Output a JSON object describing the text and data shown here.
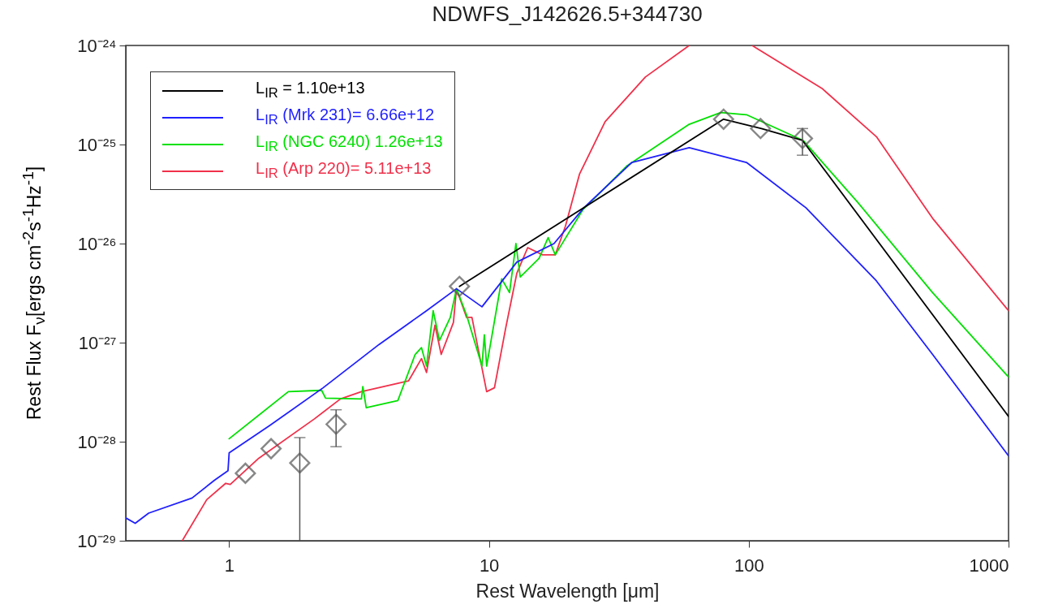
{
  "chart_data": {
    "type": "line",
    "title": "NDWFS_J142626.5+344730",
    "xlabel": "Rest Wavelength [μm]",
    "ylabel": "Rest Flux F$_{ν}$[ergs cm$^{-2}$s$^{-1}$Hz$^{-1}$]",
    "log": "xy",
    "xlim": [
      0.4,
      1000
    ],
    "ylim": [
      1e-29,
      1e-24
    ],
    "xticks": [
      1,
      10,
      100,
      1000
    ],
    "yticks": [
      {
        "value": 1e-29,
        "label": "10⁻²⁹"
      },
      {
        "value": 1e-28,
        "label": "10⁻²⁸"
      },
      {
        "value": 1e-27,
        "label": "10⁻²⁷"
      },
      {
        "value": 1e-26,
        "label": "10⁻²⁶"
      },
      {
        "value": 1e-25,
        "label": "10⁻²⁵"
      },
      {
        "value": 1e-24,
        "label": "10⁻²⁴"
      }
    ],
    "legend": "top left",
    "grid": false,
    "series": [
      {
        "type": "scatter",
        "marker": "diamond",
        "color": "#555555",
        "x": [
          1.155,
          1.45,
          1.87,
          2.58,
          7.7,
          80,
          111,
          161
        ],
        "values": [
          4.8e-29,
          8.5e-29,
          6.1e-29,
          1.5e-28,
          3.7e-27,
          1.8e-25,
          1.45e-25,
          1.15e-25
        ],
        "errors": [
          null,
          null,
          [
            1e-29,
            1.1e-28
          ],
          [
            8.9e-29,
            2.1e-28
          ],
          null,
          null,
          null,
          [
            7.8e-26,
            1.45e-25
          ]
        ]
      },
      {
        "name": "L$_{IR}$ = 1.10e+13",
        "color": "#000000",
        "x": [
          7.7,
          80,
          112,
          161,
          1000
        ],
        "values": [
          3.7e-27,
          1.8e-25,
          1.45e-25,
          1.1e-25,
          1.8e-28
        ]
      },
      {
        "name": "L$_{IR}$ (Mrk 231)= 6.66e+12",
        "color": "#1f1fff",
        "x": [
          0.4,
          0.435,
          0.49,
          0.72,
          0.88,
          0.99,
          1.0,
          1.43,
          2.3,
          3.78,
          5.75,
          7.5,
          9.4,
          12.8,
          17.8,
          23.2,
          35.5,
          59,
          98,
          166,
          310,
          510,
          1000
        ],
        "values": [
          1.7e-29,
          1.5e-29,
          1.9e-29,
          2.7e-29,
          4.1e-29,
          5.1e-29,
          7.7e-29,
          1.45e-28,
          3.5e-28,
          9.6e-28,
          2.1e-27,
          3.5e-27,
          2.3e-27,
          6.5e-27,
          1e-26,
          2.3e-26,
          6.6e-26,
          9.3e-26,
          6.6e-26,
          2.3e-26,
          4.2e-27,
          7.6e-28,
          7.2e-29
        ]
      },
      {
        "name": "L$_{IR}$ (NGC 6240) 1.26e+13",
        "color": "#00e000",
        "x": [
          1.0,
          1.69,
          2.27,
          2.35,
          3.23,
          3.27,
          3.37,
          4.46,
          5.2,
          5.5,
          5.75,
          6.1,
          6.45,
          7.1,
          7.5,
          8.2,
          9.4,
          9.6,
          9.8,
          11.2,
          12,
          12.7,
          13.2,
          15.6,
          16.9,
          18,
          23,
          34,
          59,
          78,
          98,
          162,
          263,
          510,
          1000
        ],
        "values": [
          1.07e-28,
          3.2e-28,
          3.3e-28,
          2.75e-28,
          2.7e-28,
          3.6e-28,
          2.2e-28,
          2.6e-28,
          7.6e-28,
          8.9e-28,
          5.8e-28,
          2.1e-27,
          1.05e-27,
          1.8e-27,
          3.5e-27,
          1.9e-27,
          5.8e-28,
          1.2e-27,
          5.8e-28,
          4.4e-27,
          3.2e-27,
          1e-26,
          4.6e-27,
          7.1e-27,
          1.15e-26,
          7.7e-27,
          2.2e-26,
          6.1e-26,
          1.6e-25,
          2.1e-25,
          2e-25,
          1.1e-25,
          2.6e-26,
          3.2e-27,
          4.5e-28
        ]
      },
      {
        "name": "L$_{IR}$ (Arp 220)= 5.11e+13",
        "color": "#f0304a",
        "x": [
          0.66,
          0.82,
          0.97,
          1.01,
          1.3,
          2.13,
          2.68,
          3.23,
          4.9,
          5.5,
          5.75,
          6.2,
          6.55,
          7.3,
          7.5,
          8.2,
          8.6,
          9.8,
          10.5,
          11.6,
          12.8,
          14.1,
          16.1,
          18,
          19.7,
          22.3,
          28,
          40,
          59,
          80,
          103,
          191,
          310,
          510,
          1000
        ],
        "values": [
          1e-29,
          2.6e-29,
          3.8e-29,
          3.7e-29,
          6.8e-29,
          1.7e-28,
          2.7e-28,
          3.2e-28,
          4.1e-28,
          6.9e-28,
          5e-28,
          1.5e-27,
          7.6e-28,
          1.6e-27,
          3.5e-27,
          1.8e-27,
          1.8e-27,
          3.2e-28,
          3.5e-28,
          1.4e-27,
          5e-27,
          9.1e-27,
          7.7e-27,
          7.7e-27,
          1.5e-26,
          5e-26,
          1.7e-25,
          4.8e-25,
          1e-24,
          null,
          1e-24,
          3.7e-25,
          1.2e-25,
          1.8e-26,
          2.1e-27
        ]
      }
    ]
  }
}
